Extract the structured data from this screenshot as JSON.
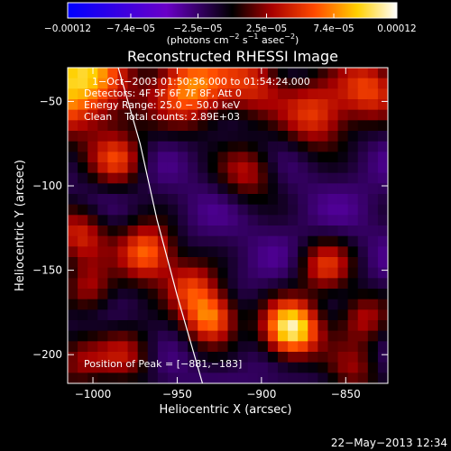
{
  "chart_data": {
    "type": "heatmap",
    "title": "Reconstructed RHESSI Image",
    "xlabel": "Heliocentric X (arcsec)",
    "ylabel": "Heliocentric Y (arcsec)",
    "xlim": [
      -1015,
      -825
    ],
    "ylim": [
      -217,
      -30
    ],
    "x_ticks": [
      -1000,
      -950,
      -900,
      -850
    ],
    "x_tick_labels": [
      "−1000",
      "−950",
      "−900",
      "−850"
    ],
    "y_ticks": [
      -50,
      -100,
      -150,
      -200
    ],
    "y_tick_labels": [
      "−50",
      "−100",
      "−150",
      "−200"
    ],
    "colorbar": {
      "range": [
        -0.00012,
        0.00012
      ],
      "tick_values": [
        -0.00012,
        -7.4e-05,
        -2.5e-05,
        2.5e-05,
        7.4e-05,
        0.00012
      ],
      "tick_labels": [
        "−0.00012",
        "−7.4e−05",
        "−2.5e−05",
        "2.5e−05",
        "7.4e−05",
        "0.00012"
      ],
      "unit_main": "(photons cm",
      "unit_sup1": "−2",
      "unit_mid1": " s",
      "unit_sup2": "−1",
      "unit_mid2": " asec",
      "unit_sup3": "−2",
      "unit_end": ")"
    },
    "annotations": {
      "time_range": "1−Oct−2003 01:50:36.000 to 01:54:24.000",
      "detectors": "Detectors: 4F 5F 6F 7F 8F, Att 0",
      "energy": "Energy Range: 25.0 − 50.0 keV",
      "method_counts": "Clean    Total counts: 2.89E+03",
      "peak": "Position of Peak = [−881,−183]"
    },
    "image_grid": {
      "nx": 32,
      "ny": 30,
      "components": [
        {
          "x": -1010,
          "y": -38,
          "amp": 1.1,
          "sigma": 22
        },
        {
          "x": -985,
          "y": -85,
          "amp": 0.6,
          "sigma": 11
        },
        {
          "x": -942,
          "y": -42,
          "amp": 0.9,
          "sigma": 16
        },
        {
          "x": -905,
          "y": -38,
          "amp": 0.6,
          "sigma": 14
        },
        {
          "x": -868,
          "y": -58,
          "amp": 0.7,
          "sigma": 14
        },
        {
          "x": -836,
          "y": -42,
          "amp": 0.7,
          "sigma": 14
        },
        {
          "x": -908,
          "y": -92,
          "amp": 0.5,
          "sigma": 12
        },
        {
          "x": -1008,
          "y": -128,
          "amp": 0.6,
          "sigma": 12
        },
        {
          "x": -968,
          "y": -140,
          "amp": 0.9,
          "sigma": 12
        },
        {
          "x": -1002,
          "y": -162,
          "amp": 0.5,
          "sigma": 11
        },
        {
          "x": -942,
          "y": -160,
          "amp": 0.6,
          "sigma": 11
        },
        {
          "x": -930,
          "y": -178,
          "amp": 0.9,
          "sigma": 11
        },
        {
          "x": -882,
          "y": -185,
          "amp": 1.25,
          "sigma": 12
        },
        {
          "x": -862,
          "y": -148,
          "amp": 0.6,
          "sigma": 11
        },
        {
          "x": -840,
          "y": -178,
          "amp": 0.5,
          "sigma": 11
        },
        {
          "x": -980,
          "y": -200,
          "amp": 0.5,
          "sigma": 12
        },
        {
          "x": -1010,
          "y": -205,
          "amp": 0.4,
          "sigma": 12
        },
        {
          "x": -845,
          "y": -210,
          "amp": 0.4,
          "sigma": 12
        }
      ]
    },
    "limb_curve": {
      "points": [
        [
          -985,
          -30
        ],
        [
          -972,
          -75
        ],
        [
          -962,
          -120
        ],
        [
          -950,
          -165
        ],
        [
          -935,
          -217
        ]
      ]
    }
  },
  "footer": {
    "date": "22−May−2013 12:34"
  }
}
